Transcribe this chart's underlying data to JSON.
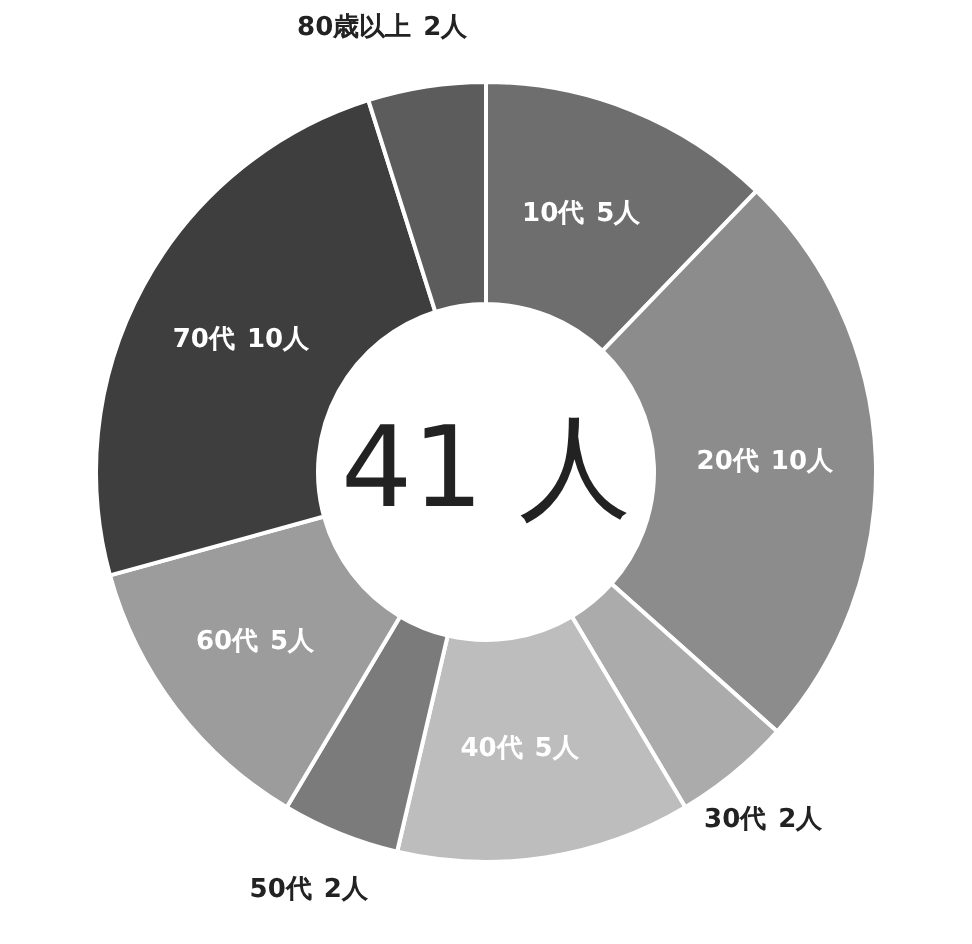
{
  "chart_data": {
    "type": "donut",
    "categories": [
      "10代",
      "20代",
      "30代",
      "40代",
      "50代",
      "60代",
      "70代",
      "80歳以上"
    ],
    "values": [
      5,
      10,
      2,
      5,
      2,
      5,
      10,
      2
    ],
    "colors": [
      "#6e6e6e",
      "#8c8c8c",
      "#ababab",
      "#bdbdbd",
      "#7b7b7b",
      "#9c9c9c",
      "#3e3e3e",
      "#5c5c5c"
    ],
    "value_labels": [
      "5人",
      "10人",
      "2人",
      "5人",
      "2人",
      "5人",
      "10人",
      "2人"
    ],
    "annotations": [
      "41 人"
    ]
  }
}
